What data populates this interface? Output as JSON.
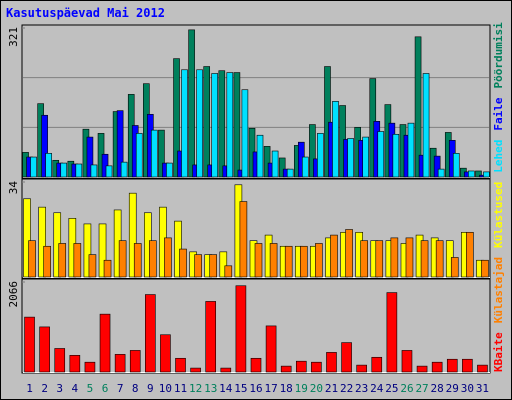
{
  "chart_data": {
    "type": "bar",
    "title": "Kasutuspäevad Mai 2012",
    "categories": [
      "1",
      "2",
      "3",
      "4",
      "5",
      "6",
      "7",
      "8",
      "9",
      "10",
      "11",
      "12",
      "13",
      "14",
      "15",
      "16",
      "17",
      "18",
      "19",
      "20",
      "21",
      "22",
      "23",
      "24",
      "25",
      "26",
      "27",
      "28",
      "29",
      "30",
      "31"
    ],
    "label_colors": [
      "#000080",
      "#000080",
      "#000080",
      "#000080",
      "#00805c",
      "#00805c",
      "#000080",
      "#000080",
      "#000080",
      "#000080",
      "#000080",
      "#00805c",
      "#00805c",
      "#000080",
      "#000080",
      "#000080",
      "#000080",
      "#000080",
      "#00805c",
      "#00805c",
      "#000080",
      "#000080",
      "#000080",
      "#000080",
      "#000080",
      "#00805c",
      "#00805c",
      "#000080",
      "#000080",
      "#000080",
      "#000080"
    ],
    "panels": [
      {
        "ylim": [
          0,
          321
        ],
        "yticks": [
          321
        ],
        "series": [
          {
            "name": "Pöördumisi",
            "color": "#00805c",
            "values": [
              53,
              158,
              36,
              34,
              103,
              94,
              141,
              178,
              201,
              101,
              255,
              317,
              238,
              229,
              225,
              105,
              66,
              41,
              68,
              113,
              238,
              154,
              107,
              212,
              156,
              113,
              302,
              62,
              96,
              19,
              13
            ]
          },
          {
            "name": "Faile",
            "color": "#0000ff",
            "values": [
              43,
              133,
              30,
              28,
              86,
              49,
              143,
              111,
              135,
              30,
              56,
              26,
              26,
              24,
              15,
              54,
              30,
              17,
              75,
              39,
              118,
              81,
              79,
              120,
              116,
              90,
              47,
              45,
              79,
              11,
              4
            ]
          },
          {
            "name": "Lehed",
            "color": "#00e0ff",
            "values": [
              43,
              51,
              30,
              28,
              26,
              24,
              32,
              94,
              101,
              30,
              231,
              231,
              223,
              225,
              188,
              90,
              56,
              17,
              43,
              94,
              163,
              83,
              86,
              98,
              92,
              116,
              223,
              17,
              51,
              13,
              11
            ]
          }
        ]
      },
      {
        "ylim": [
          0,
          34
        ],
        "yticks": [
          34
        ],
        "series": [
          {
            "name": "Külastused",
            "color": "#ffff00",
            "values": [
              28,
              25,
              23,
              21,
              19,
              19,
              24,
              30,
              23,
              25,
              20,
              9,
              8,
              9,
              33,
              13,
              15,
              11,
              11,
              11,
              14,
              16,
              16,
              13,
              13,
              12,
              15,
              14,
              13,
              16,
              6
            ]
          },
          {
            "name": "Külastajad",
            "color": "#ff8000",
            "values": [
              13,
              11,
              12,
              12,
              8,
              6,
              13,
              12,
              13,
              14,
              10,
              8,
              8,
              4,
              27,
              12,
              12,
              11,
              11,
              12,
              15,
              17,
              13,
              13,
              14,
              14,
              13,
              13,
              7,
              16,
              6
            ]
          }
        ]
      },
      {
        "ylim": [
          0,
          2066
        ],
        "yticks": [
          2066
        ],
        "series": [
          {
            "name": "KBaite",
            "color": "#ff0000",
            "values": [
              1260,
              1035,
              540,
              383,
              225,
              1328,
              405,
              495,
              1778,
              855,
              315,
              90,
              1620,
              90,
              1980,
              315,
              1058,
              135,
              248,
              225,
              450,
              675,
              158,
              338,
              1823,
              495,
              135,
              225,
              293,
              293,
              158
            ]
          }
        ]
      }
    ]
  }
}
